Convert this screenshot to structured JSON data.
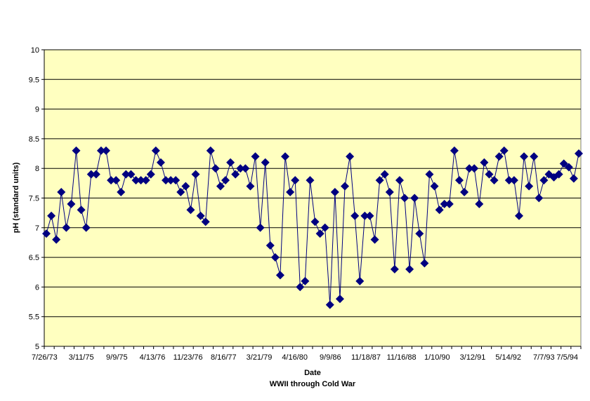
{
  "chart_data": {
    "type": "line",
    "title": "",
    "xlabel": "Date",
    "xlabel_sub": "WWII through Cold War",
    "ylabel": "pH (standard units)",
    "ylim": [
      5,
      10
    ],
    "yticks": [
      "5",
      "5.5",
      "6",
      "6.5",
      "7",
      "7.5",
      "8",
      "8.5",
      "9",
      "9.5",
      "10"
    ],
    "xtick_labels": [
      "7/26/73",
      "3/11/75",
      "9/9/75",
      "4/13/76",
      "11/23/76",
      "8/16/77",
      "3/21/79",
      "4/16/80",
      "9/9/86",
      "11/18/87",
      "11/16/88",
      "1/10/90",
      "3/12/91",
      "5/14/92",
      "7/7/93",
      "7/5/94"
    ],
    "grid": true,
    "legend": "none",
    "colors": {
      "plot_bg": "#FFFFC0",
      "series": "#000080",
      "grid": "#000000"
    },
    "series": [
      {
        "values": [
          6.9,
          7.2,
          6.8,
          7.6,
          7.0,
          7.4,
          8.3,
          7.3,
          7.0,
          7.9,
          7.9,
          8.3,
          8.3,
          7.8,
          7.8,
          7.6,
          7.9,
          7.9,
          7.8,
          7.8,
          7.8,
          7.9,
          8.3,
          8.1,
          7.8,
          7.8,
          7.8,
          7.6,
          7.7,
          7.3,
          7.9,
          7.2,
          7.1,
          8.3,
          8.0,
          7.7,
          7.8,
          8.1,
          7.9,
          8.0,
          8.0,
          7.7,
          8.2,
          7.0,
          8.1,
          6.7,
          6.5,
          6.2,
          8.2,
          7.6,
          7.8,
          6.0,
          6.1,
          7.8,
          7.1,
          6.9,
          7.0,
          5.7,
          7.6,
          5.8,
          7.7,
          8.2,
          7.2,
          6.1,
          7.2,
          7.2,
          6.8,
          7.8,
          7.9,
          7.6,
          6.3,
          7.8,
          7.5,
          6.3,
          7.5,
          6.9,
          6.4,
          7.9,
          7.7,
          7.3,
          7.4,
          7.4,
          8.3,
          7.8,
          7.6,
          8.0,
          8.0,
          7.4,
          8.1,
          7.9,
          7.8,
          8.2,
          8.3,
          7.8,
          7.8,
          7.2,
          8.2,
          7.7,
          8.2,
          7.5,
          7.8,
          7.9,
          7.85,
          7.9,
          8.08,
          8.02,
          7.83,
          8.25
        ]
      }
    ]
  }
}
